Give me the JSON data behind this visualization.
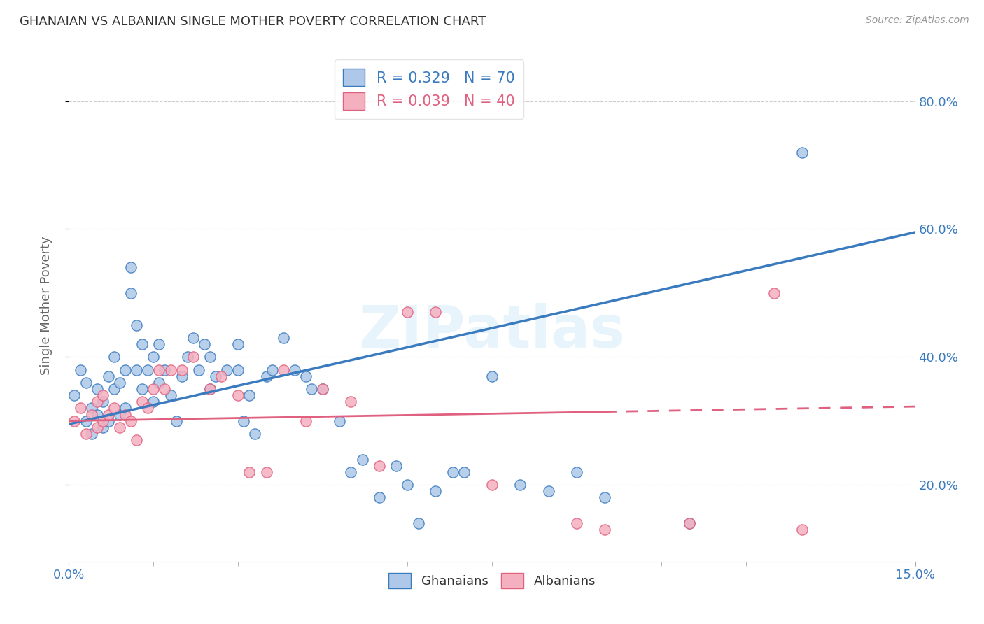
{
  "title": "GHANAIAN VS ALBANIAN SINGLE MOTHER POVERTY CORRELATION CHART",
  "source": "Source: ZipAtlas.com",
  "ylabel": "Single Mother Poverty",
  "x_range": [
    0.0,
    0.15
  ],
  "y_range": [
    0.08,
    0.88
  ],
  "watermark": "ZIPatlas",
  "ghanaian_color": "#adc8e8",
  "albanian_color": "#f5b0c0",
  "ghanaian_line_color": "#3a7abf",
  "albanian_line_color": "#e06080",
  "y_tick_vals": [
    0.2,
    0.4,
    0.6,
    0.8
  ],
  "y_tick_labels": [
    "20.0%",
    "40.0%",
    "60.0%",
    "80.0%"
  ],
  "x_tick_vals": [
    0.0,
    0.15
  ],
  "x_tick_labels": [
    "0.0%",
    "15.0%"
  ],
  "ghanaian_slope": 2.0,
  "ghanaian_intercept": 0.295,
  "albanian_slope": 0.15,
  "albanian_intercept": 0.3,
  "ghanaian_points_x": [
    0.001,
    0.002,
    0.003,
    0.003,
    0.004,
    0.004,
    0.005,
    0.005,
    0.006,
    0.006,
    0.007,
    0.007,
    0.008,
    0.008,
    0.009,
    0.009,
    0.01,
    0.01,
    0.011,
    0.011,
    0.012,
    0.012,
    0.013,
    0.013,
    0.014,
    0.015,
    0.015,
    0.016,
    0.016,
    0.017,
    0.018,
    0.019,
    0.02,
    0.021,
    0.022,
    0.023,
    0.024,
    0.025,
    0.025,
    0.026,
    0.028,
    0.03,
    0.03,
    0.031,
    0.032,
    0.033,
    0.035,
    0.036,
    0.038,
    0.04,
    0.042,
    0.043,
    0.045,
    0.048,
    0.05,
    0.052,
    0.055,
    0.058,
    0.06,
    0.062,
    0.065,
    0.068,
    0.07,
    0.075,
    0.08,
    0.085,
    0.09,
    0.095,
    0.11,
    0.13
  ],
  "ghanaian_points_y": [
    0.34,
    0.38,
    0.3,
    0.36,
    0.32,
    0.28,
    0.35,
    0.31,
    0.33,
    0.29,
    0.37,
    0.3,
    0.35,
    0.4,
    0.31,
    0.36,
    0.38,
    0.32,
    0.5,
    0.54,
    0.45,
    0.38,
    0.42,
    0.35,
    0.38,
    0.4,
    0.33,
    0.42,
    0.36,
    0.38,
    0.34,
    0.3,
    0.37,
    0.4,
    0.43,
    0.38,
    0.42,
    0.4,
    0.35,
    0.37,
    0.38,
    0.38,
    0.42,
    0.3,
    0.34,
    0.28,
    0.37,
    0.38,
    0.43,
    0.38,
    0.37,
    0.35,
    0.35,
    0.3,
    0.22,
    0.24,
    0.18,
    0.23,
    0.2,
    0.14,
    0.19,
    0.22,
    0.22,
    0.37,
    0.2,
    0.19,
    0.22,
    0.18,
    0.14,
    0.72
  ],
  "albanian_points_x": [
    0.001,
    0.002,
    0.003,
    0.004,
    0.005,
    0.005,
    0.006,
    0.006,
    0.007,
    0.008,
    0.009,
    0.01,
    0.011,
    0.012,
    0.013,
    0.014,
    0.015,
    0.016,
    0.017,
    0.018,
    0.02,
    0.022,
    0.025,
    0.027,
    0.03,
    0.032,
    0.035,
    0.038,
    0.042,
    0.045,
    0.05,
    0.055,
    0.06,
    0.065,
    0.075,
    0.09,
    0.095,
    0.11,
    0.125,
    0.13
  ],
  "albanian_points_y": [
    0.3,
    0.32,
    0.28,
    0.31,
    0.33,
    0.29,
    0.34,
    0.3,
    0.31,
    0.32,
    0.29,
    0.31,
    0.3,
    0.27,
    0.33,
    0.32,
    0.35,
    0.38,
    0.35,
    0.38,
    0.38,
    0.4,
    0.35,
    0.37,
    0.34,
    0.22,
    0.22,
    0.38,
    0.3,
    0.35,
    0.33,
    0.23,
    0.47,
    0.47,
    0.2,
    0.14,
    0.13,
    0.14,
    0.5,
    0.13
  ],
  "background_color": "#ffffff",
  "grid_color": "#cccccc"
}
